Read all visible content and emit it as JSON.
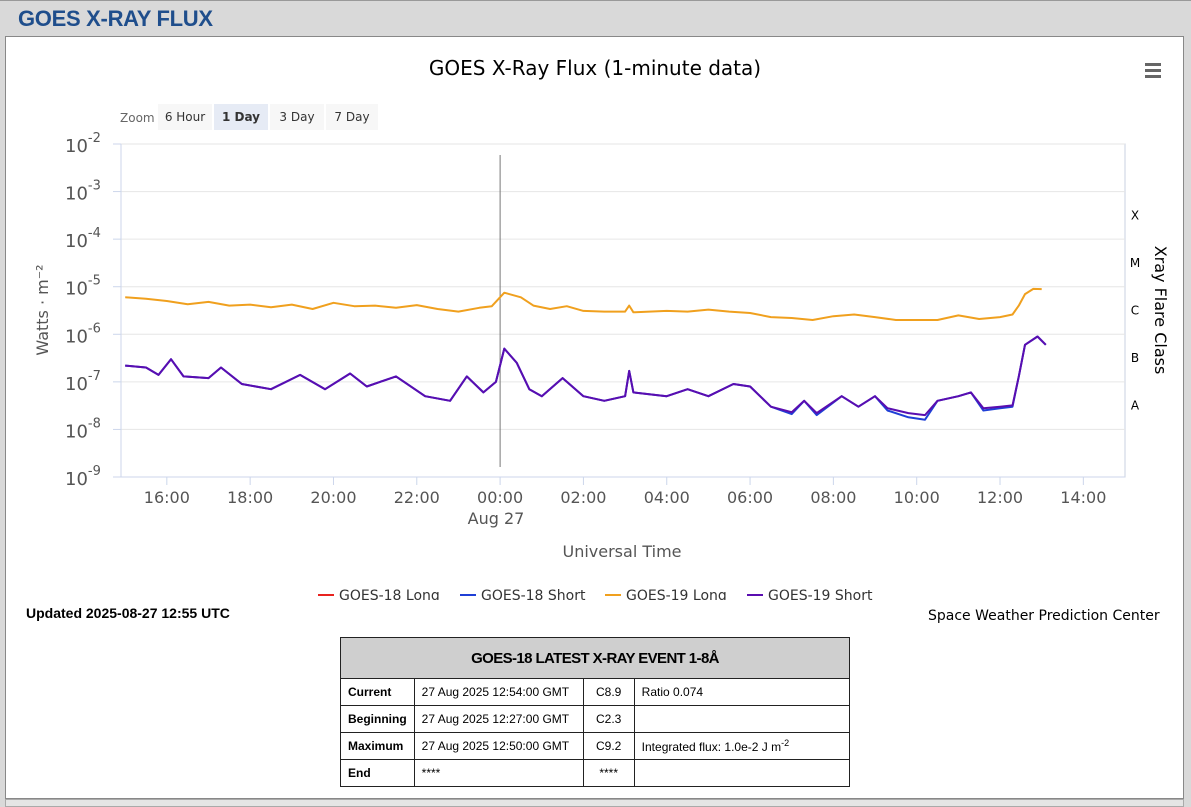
{
  "header": {
    "title": "GOES X-RAY FLUX"
  },
  "zoom": {
    "label": "Zoom",
    "options": [
      "6 Hour",
      "1 Day",
      "3 Day",
      "7 Day"
    ],
    "selected": "1 Day"
  },
  "chart_data": {
    "type": "line",
    "title": "GOES X-Ray Flux (1-minute data)",
    "xlabel": "Universal Time",
    "ylabel": "Watts · m⁻²",
    "y2label": "Xray Flare Class",
    "y_scale": "log",
    "ylim": [
      1e-09,
      0.01
    ],
    "xlim": [
      -9.1,
      15.0
    ],
    "x_unit": "hours UTC relative to 2025-08-27 00:00",
    "x_tick_labels": [
      "16:00",
      "18:00",
      "20:00",
      "22:00",
      "00:00",
      "02:00",
      "04:00",
      "06:00",
      "08:00",
      "10:00",
      "12:00",
      "14:00"
    ],
    "date_label": "Aug 27",
    "y_tick_labels": [
      "10-9",
      "10-8",
      "10-7",
      "10-6",
      "10-5",
      "10-4",
      "10-3",
      "10-2"
    ],
    "flare_classes": [
      "A",
      "B",
      "C",
      "M",
      "X"
    ],
    "grid": true,
    "legend_position": "bottom",
    "series": [
      {
        "name": "GOES-18 Long",
        "color": "#e8231f",
        "points": []
      },
      {
        "name": "GOES-18 Short",
        "color": "#1f3fd6",
        "points": [
          [
            -9.0,
            2.2e-07
          ],
          [
            -8.5,
            2e-07
          ],
          [
            -8.2,
            1.4e-07
          ],
          [
            -7.9,
            3e-07
          ],
          [
            -7.6,
            1.3e-07
          ],
          [
            -7.0,
            1.2e-07
          ],
          [
            -6.7,
            2e-07
          ],
          [
            -6.2,
            9e-08
          ],
          [
            -5.5,
            7e-08
          ],
          [
            -4.8,
            1.4e-07
          ],
          [
            -4.2,
            7e-08
          ],
          [
            -3.6,
            1.5e-07
          ],
          [
            -3.2,
            8e-08
          ],
          [
            -2.5,
            1.3e-07
          ],
          [
            -1.8,
            5e-08
          ],
          [
            -1.2,
            4e-08
          ],
          [
            -0.8,
            1.3e-07
          ],
          [
            -0.4,
            6e-08
          ],
          [
            -0.1,
            1e-07
          ],
          [
            0.1,
            5e-07
          ],
          [
            0.4,
            2.5e-07
          ],
          [
            0.7,
            7e-08
          ],
          [
            1.0,
            5e-08
          ],
          [
            1.5,
            1.2e-07
          ],
          [
            2.0,
            5e-08
          ],
          [
            2.5,
            4e-08
          ],
          [
            3.0,
            5e-08
          ],
          [
            3.1,
            1.7e-07
          ],
          [
            3.2,
            6e-08
          ],
          [
            4.0,
            5e-08
          ],
          [
            4.5,
            7e-08
          ],
          [
            5.0,
            5e-08
          ],
          [
            5.6,
            9e-08
          ],
          [
            6.0,
            8e-08
          ],
          [
            6.5,
            3e-08
          ],
          [
            7.0,
            2.1e-08
          ],
          [
            7.3,
            4e-08
          ],
          [
            7.6,
            2e-08
          ],
          [
            8.2,
            5e-08
          ],
          [
            8.6,
            3e-08
          ],
          [
            9.0,
            5e-08
          ],
          [
            9.3,
            2.5e-08
          ],
          [
            9.8,
            1.8e-08
          ],
          [
            10.2,
            1.6e-08
          ],
          [
            10.5,
            4e-08
          ],
          [
            11.0,
            5e-08
          ],
          [
            11.3,
            6e-08
          ],
          [
            11.6,
            2.5e-08
          ],
          [
            12.0,
            2.8e-08
          ],
          [
            12.3,
            3e-08
          ],
          [
            12.45,
            1.3e-07
          ],
          [
            12.6,
            6e-07
          ],
          [
            12.9,
            9e-07
          ],
          [
            13.1,
            6e-07
          ]
        ]
      },
      {
        "name": "GOES-19 Long",
        "color": "#f0a01e",
        "points": [
          [
            -9.0,
            6e-06
          ],
          [
            -8.5,
            5.6e-06
          ],
          [
            -8.0,
            5e-06
          ],
          [
            -7.5,
            4.3e-06
          ],
          [
            -7.0,
            4.8e-06
          ],
          [
            -6.5,
            4e-06
          ],
          [
            -6.0,
            4.2e-06
          ],
          [
            -5.5,
            3.7e-06
          ],
          [
            -5.0,
            4.2e-06
          ],
          [
            -4.5,
            3.4e-06
          ],
          [
            -4.0,
            4.6e-06
          ],
          [
            -3.5,
            3.9e-06
          ],
          [
            -3.0,
            4e-06
          ],
          [
            -2.5,
            3.6e-06
          ],
          [
            -2.0,
            4.1e-06
          ],
          [
            -1.5,
            3.4e-06
          ],
          [
            -1.0,
            3e-06
          ],
          [
            -0.5,
            3.6e-06
          ],
          [
            -0.2,
            3.9e-06
          ],
          [
            0.1,
            7.5e-06
          ],
          [
            0.5,
            6e-06
          ],
          [
            0.8,
            4e-06
          ],
          [
            1.2,
            3.4e-06
          ],
          [
            1.6,
            3.9e-06
          ],
          [
            2.0,
            3.1e-06
          ],
          [
            2.5,
            3e-06
          ],
          [
            3.0,
            3e-06
          ],
          [
            3.1,
            4e-06
          ],
          [
            3.2,
            2.9e-06
          ],
          [
            4.0,
            3.1e-06
          ],
          [
            4.5,
            3e-06
          ],
          [
            5.0,
            3.3e-06
          ],
          [
            5.5,
            3e-06
          ],
          [
            6.0,
            2.8e-06
          ],
          [
            6.5,
            2.3e-06
          ],
          [
            7.0,
            2.2e-06
          ],
          [
            7.5,
            2e-06
          ],
          [
            8.0,
            2.4e-06
          ],
          [
            8.5,
            2.6e-06
          ],
          [
            9.0,
            2.3e-06
          ],
          [
            9.5,
            2e-06
          ],
          [
            10.0,
            2e-06
          ],
          [
            10.5,
            2e-06
          ],
          [
            11.0,
            2.5e-06
          ],
          [
            11.5,
            2.1e-06
          ],
          [
            12.0,
            2.3e-06
          ],
          [
            12.3,
            2.6e-06
          ],
          [
            12.45,
            4e-06
          ],
          [
            12.6,
            7e-06
          ],
          [
            12.8,
            9e-06
          ],
          [
            13.0,
            8.9e-06
          ]
        ]
      },
      {
        "name": "GOES-19 Short",
        "color": "#5a0db0",
        "points": [
          [
            -9.0,
            2.2e-07
          ],
          [
            -8.5,
            2e-07
          ],
          [
            -8.2,
            1.4e-07
          ],
          [
            -7.9,
            3e-07
          ],
          [
            -7.6,
            1.3e-07
          ],
          [
            -7.0,
            1.2e-07
          ],
          [
            -6.7,
            2e-07
          ],
          [
            -6.2,
            9e-08
          ],
          [
            -5.5,
            7e-08
          ],
          [
            -4.8,
            1.4e-07
          ],
          [
            -4.2,
            7e-08
          ],
          [
            -3.6,
            1.5e-07
          ],
          [
            -3.2,
            8e-08
          ],
          [
            -2.5,
            1.3e-07
          ],
          [
            -1.8,
            5e-08
          ],
          [
            -1.2,
            4e-08
          ],
          [
            -0.8,
            1.3e-07
          ],
          [
            -0.4,
            6e-08
          ],
          [
            -0.1,
            1e-07
          ],
          [
            0.1,
            5e-07
          ],
          [
            0.4,
            2.5e-07
          ],
          [
            0.7,
            7e-08
          ],
          [
            1.0,
            5e-08
          ],
          [
            1.5,
            1.2e-07
          ],
          [
            2.0,
            5e-08
          ],
          [
            2.5,
            4e-08
          ],
          [
            3.0,
            5e-08
          ],
          [
            3.1,
            1.7e-07
          ],
          [
            3.2,
            6e-08
          ],
          [
            4.0,
            5e-08
          ],
          [
            4.5,
            7e-08
          ],
          [
            5.0,
            5e-08
          ],
          [
            5.6,
            9e-08
          ],
          [
            6.0,
            8e-08
          ],
          [
            6.5,
            3e-08
          ],
          [
            7.0,
            2.3e-08
          ],
          [
            7.3,
            4e-08
          ],
          [
            7.6,
            2.2e-08
          ],
          [
            8.2,
            5e-08
          ],
          [
            8.6,
            3e-08
          ],
          [
            9.0,
            5e-08
          ],
          [
            9.3,
            2.8e-08
          ],
          [
            9.8,
            2.2e-08
          ],
          [
            10.2,
            2e-08
          ],
          [
            10.5,
            4e-08
          ],
          [
            11.0,
            5e-08
          ],
          [
            11.3,
            6e-08
          ],
          [
            11.6,
            2.8e-08
          ],
          [
            12.0,
            3e-08
          ],
          [
            12.3,
            3.2e-08
          ],
          [
            12.45,
            1.3e-07
          ],
          [
            12.6,
            6e-07
          ],
          [
            12.9,
            9e-07
          ],
          [
            13.1,
            6e-07
          ]
        ]
      }
    ]
  },
  "updated": "Updated 2025-08-27 12:55 UTC",
  "credit": "Space Weather Prediction Center",
  "event_table": {
    "title": "GOES-18 LATEST X-RAY EVENT 1-8Å",
    "rows": [
      {
        "label": "Current",
        "time": "27 Aug 2025 12:54:00 GMT",
        "class": "C8.9",
        "note": "Ratio 0.074"
      },
      {
        "label": "Beginning",
        "time": "27 Aug 2025 12:27:00 GMT",
        "class": "C2.3",
        "note": ""
      },
      {
        "label": "Maximum",
        "time": "27 Aug 2025 12:50:00 GMT",
        "class": "C9.2",
        "note": "Integrated flux: 1.0e-2 J m",
        "note_sup": "-2"
      },
      {
        "label": "End",
        "time": "****",
        "class": "****",
        "note": ""
      }
    ]
  }
}
